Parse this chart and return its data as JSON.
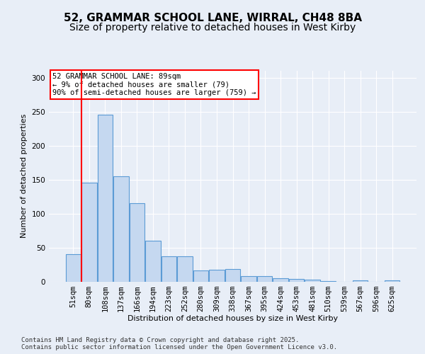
{
  "title_line1": "52, GRAMMAR SCHOOL LANE, WIRRAL, CH48 8BA",
  "title_line2": "Size of property relative to detached houses in West Kirby",
  "xlabel": "Distribution of detached houses by size in West Kirby",
  "ylabel": "Number of detached properties",
  "categories": [
    "51sqm",
    "80sqm",
    "108sqm",
    "137sqm",
    "166sqm",
    "194sqm",
    "223sqm",
    "252sqm",
    "280sqm",
    "309sqm",
    "338sqm",
    "367sqm",
    "395sqm",
    "424sqm",
    "453sqm",
    "481sqm",
    "510sqm",
    "539sqm",
    "567sqm",
    "596sqm",
    "625sqm"
  ],
  "values": [
    40,
    145,
    245,
    155,
    115,
    60,
    37,
    37,
    16,
    17,
    18,
    8,
    8,
    5,
    4,
    3,
    1,
    0,
    2,
    0,
    2
  ],
  "bar_color": "#c5d8f0",
  "bar_edge_color": "#5b9bd5",
  "vline_x_index": 1,
  "vline_color": "red",
  "annotation_text": "52 GRAMMAR SCHOOL LANE: 89sqm\n← 9% of detached houses are smaller (79)\n90% of semi-detached houses are larger (759) →",
  "annotation_box_color": "white",
  "annotation_box_edge": "red",
  "bg_color": "#e8eef7",
  "plot_bg_color": "#e8eef7",
  "footer_text": "Contains HM Land Registry data © Crown copyright and database right 2025.\nContains public sector information licensed under the Open Government Licence v3.0.",
  "ylim": [
    0,
    310
  ],
  "yticks": [
    0,
    50,
    100,
    150,
    200,
    250,
    300
  ],
  "title_fontsize": 11,
  "subtitle_fontsize": 10,
  "axis_label_fontsize": 8,
  "tick_fontsize": 7.5,
  "annotation_fontsize": 7.5,
  "footer_fontsize": 6.5
}
